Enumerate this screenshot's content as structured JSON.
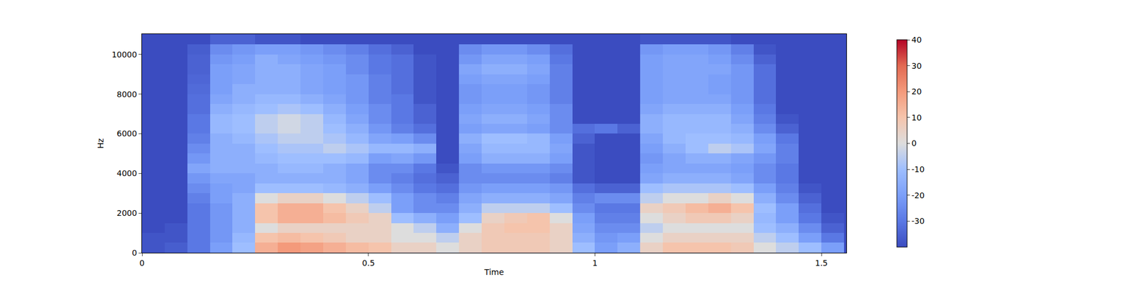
{
  "chart_data": {
    "type": "heatmap",
    "x_label": "Time",
    "y_label": "Hz",
    "xlim": [
      0,
      1.555
    ],
    "xticks": [
      0,
      0.5,
      1,
      1.5
    ],
    "ylim": [
      0,
      11025
    ],
    "yticks": [
      0,
      2000,
      4000,
      6000,
      8000,
      10000
    ],
    "colorbar_range": [
      -40,
      40
    ],
    "colorbar_ticks": [
      -30,
      -20,
      -10,
      0,
      10,
      20,
      30,
      40
    ],
    "x": [
      0.025,
      0.075,
      0.125,
      0.175,
      0.225,
      0.275,
      0.325,
      0.375,
      0.425,
      0.475,
      0.525,
      0.575,
      0.625,
      0.675,
      0.725,
      0.775,
      0.825,
      0.875,
      0.925,
      0.975,
      1.025,
      1.075,
      1.125,
      1.175,
      1.225,
      1.275,
      1.325,
      1.375,
      1.425,
      1.475,
      1.525
    ],
    "y": [
      250,
      750,
      1250,
      1750,
      2250,
      2750,
      3250,
      3750,
      4250,
      4750,
      5250,
      5750,
      6250,
      6750,
      7250,
      7750,
      8250,
      8750,
      9250,
      9750,
      10250,
      10750
    ],
    "z": [
      [
        -38,
        -36,
        -30,
        -20,
        -10,
        15,
        20,
        18,
        15,
        12,
        10,
        5,
        5,
        0,
        5,
        8,
        8,
        8,
        5,
        -10,
        -20,
        -15,
        5,
        10,
        10,
        10,
        8,
        0,
        -5,
        -10,
        -20
      ],
      [
        -38,
        -38,
        -30,
        -22,
        -12,
        10,
        12,
        10,
        8,
        5,
        5,
        0,
        0,
        -5,
        5,
        8,
        8,
        8,
        5,
        -15,
        -22,
        -20,
        0,
        5,
        5,
        5,
        5,
        -5,
        -10,
        -20,
        -30
      ],
      [
        -40,
        -38,
        -30,
        -22,
        -15,
        0,
        5,
        5,
        5,
        5,
        5,
        0,
        -5,
        -15,
        0,
        8,
        10,
        10,
        5,
        -18,
        -25,
        -25,
        -5,
        0,
        0,
        0,
        0,
        -10,
        -15,
        -25,
        -35
      ],
      [
        -40,
        -40,
        -30,
        -22,
        -15,
        10,
        15,
        15,
        12,
        8,
        5,
        -10,
        -15,
        -20,
        -10,
        5,
        8,
        10,
        0,
        -20,
        -28,
        -28,
        0,
        5,
        8,
        8,
        5,
        -12,
        -20,
        -30,
        -38
      ],
      [
        -40,
        -40,
        -30,
        -22,
        -15,
        10,
        15,
        15,
        10,
        5,
        -5,
        -20,
        -25,
        -25,
        -15,
        -5,
        -5,
        -5,
        -10,
        -25,
        -30,
        -30,
        5,
        8,
        12,
        15,
        10,
        -10,
        -20,
        -32,
        -40
      ],
      [
        -40,
        -40,
        -28,
        -20,
        -15,
        0,
        5,
        5,
        0,
        -5,
        -10,
        -20,
        -25,
        -28,
        -18,
        -15,
        -15,
        -15,
        -18,
        -28,
        -25,
        -25,
        -5,
        0,
        0,
        5,
        0,
        -15,
        -25,
        -35,
        -40
      ],
      [
        -40,
        -40,
        -25,
        -20,
        -18,
        -10,
        -10,
        -10,
        -12,
        -15,
        -20,
        -25,
        -30,
        -32,
        -22,
        -20,
        -20,
        -20,
        -22,
        -32,
        -35,
        -35,
        -10,
        -8,
        -8,
        -8,
        -10,
        -20,
        -28,
        -38,
        -40
      ],
      [
        -40,
        -40,
        -22,
        -18,
        -18,
        -15,
        -15,
        -15,
        -15,
        -18,
        -25,
        -28,
        -32,
        -35,
        -25,
        -25,
        -25,
        -25,
        -28,
        -38,
        -40,
        -40,
        -18,
        -15,
        -15,
        -15,
        -18,
        -25,
        -30,
        -40,
        -40
      ],
      [
        -40,
        -40,
        -18,
        -15,
        -15,
        -15,
        -12,
        -12,
        -15,
        -18,
        -25,
        -25,
        -30,
        -38,
        -25,
        -22,
        -22,
        -22,
        -25,
        -38,
        -40,
        -40,
        -20,
        -18,
        -18,
        -18,
        -20,
        -25,
        -30,
        -40,
        -40
      ],
      [
        -40,
        -40,
        -22,
        -15,
        -15,
        -12,
        -10,
        -10,
        -10,
        -12,
        -20,
        -18,
        -22,
        -40,
        -20,
        -15,
        -15,
        -15,
        -20,
        -38,
        -40,
        -40,
        -22,
        -18,
        -15,
        -15,
        -18,
        -22,
        -28,
        -40,
        -40
      ],
      [
        -40,
        -40,
        -25,
        -15,
        -15,
        -10,
        -8,
        -8,
        -5,
        -8,
        -12,
        -12,
        -15,
        -40,
        -18,
        -12,
        -12,
        -12,
        -18,
        -38,
        -40,
        -40,
        -20,
        -15,
        -10,
        -5,
        -8,
        -18,
        -28,
        -40,
        -40
      ],
      [
        -40,
        -40,
        -28,
        -15,
        -12,
        -8,
        -5,
        -5,
        -8,
        -12,
        -18,
        -20,
        -25,
        -40,
        -15,
        -10,
        -10,
        -12,
        -20,
        -35,
        -40,
        -40,
        -18,
        -12,
        -10,
        -10,
        -12,
        -20,
        -30,
        -40,
        -40
      ],
      [
        -40,
        -40,
        -30,
        -12,
        -10,
        -5,
        -2,
        -5,
        -10,
        -15,
        -22,
        -28,
        -32,
        -40,
        -20,
        -18,
        -18,
        -20,
        -25,
        -32,
        -30,
        -35,
        -15,
        -12,
        -12,
        -12,
        -15,
        -25,
        -35,
        -40,
        -40
      ],
      [
        -40,
        -40,
        -30,
        -12,
        -10,
        -5,
        -2,
        -5,
        -12,
        -18,
        -25,
        -30,
        -35,
        -40,
        -18,
        -15,
        -15,
        -18,
        -25,
        -40,
        -40,
        -40,
        -15,
        -12,
        -12,
        -12,
        -18,
        -28,
        -38,
        -40,
        -40
      ],
      [
        -40,
        -40,
        -32,
        -15,
        -12,
        -10,
        -8,
        -10,
        -15,
        -20,
        -25,
        -30,
        -35,
        -40,
        -20,
        -18,
        -18,
        -20,
        -25,
        -40,
        -40,
        -40,
        -18,
        -15,
        -15,
        -15,
        -20,
        -30,
        -40,
        -40,
        -40
      ],
      [
        -40,
        -40,
        -32,
        -18,
        -15,
        -12,
        -12,
        -15,
        -18,
        -22,
        -28,
        -30,
        -38,
        -40,
        -22,
        -20,
        -20,
        -22,
        -28,
        -40,
        -40,
        -40,
        -20,
        -18,
        -18,
        -18,
        -22,
        -32,
        -40,
        -40,
        -40
      ],
      [
        -40,
        -40,
        -33,
        -20,
        -15,
        -15,
        -15,
        -18,
        -20,
        -22,
        -28,
        -32,
        -38,
        -40,
        -22,
        -20,
        -20,
        -22,
        -28,
        -40,
        -40,
        -40,
        -20,
        -18,
        -18,
        -20,
        -22,
        -32,
        -40,
        -40,
        -40
      ],
      [
        -40,
        -40,
        -34,
        -20,
        -18,
        -15,
        -15,
        -18,
        -20,
        -22,
        -28,
        -32,
        -38,
        -40,
        -20,
        -18,
        -18,
        -20,
        -28,
        -40,
        -40,
        -40,
        -20,
        -18,
        -18,
        -20,
        -22,
        -32,
        -40,
        -40,
        -40
      ],
      [
        -40,
        -40,
        -35,
        -20,
        -18,
        -15,
        -15,
        -18,
        -20,
        -25,
        -30,
        -32,
        -38,
        -40,
        -18,
        -15,
        -15,
        -18,
        -28,
        -40,
        -40,
        -40,
        -20,
        -18,
        -18,
        -18,
        -22,
        -32,
        -40,
        -40,
        -40
      ],
      [
        -40,
        -40,
        -35,
        -22,
        -20,
        -15,
        -18,
        -20,
        -22,
        -25,
        -30,
        -32,
        -38,
        -40,
        -22,
        -18,
        -18,
        -20,
        -30,
        -40,
        -40,
        -40,
        -20,
        -18,
        -18,
        -20,
        -25,
        -35,
        -40,
        -40,
        -40
      ],
      [
        -40,
        -40,
        -36,
        -25,
        -22,
        -20,
        -20,
        -22,
        -25,
        -28,
        -32,
        -35,
        -40,
        -40,
        -25,
        -22,
        -22,
        -25,
        -32,
        -40,
        -40,
        -40,
        -22,
        -20,
        -20,
        -22,
        -28,
        -38,
        -40,
        -40,
        -40
      ],
      [
        -40,
        -40,
        -40,
        -35,
        -35,
        -38,
        -38,
        -40,
        -40,
        -40,
        -40,
        -40,
        -40,
        -40,
        -40,
        -40,
        -40,
        -40,
        -40,
        -40,
        -40,
        -40,
        -38,
        -38,
        -38,
        -38,
        -40,
        -40,
        -40,
        -40,
        -40
      ]
    ]
  }
}
